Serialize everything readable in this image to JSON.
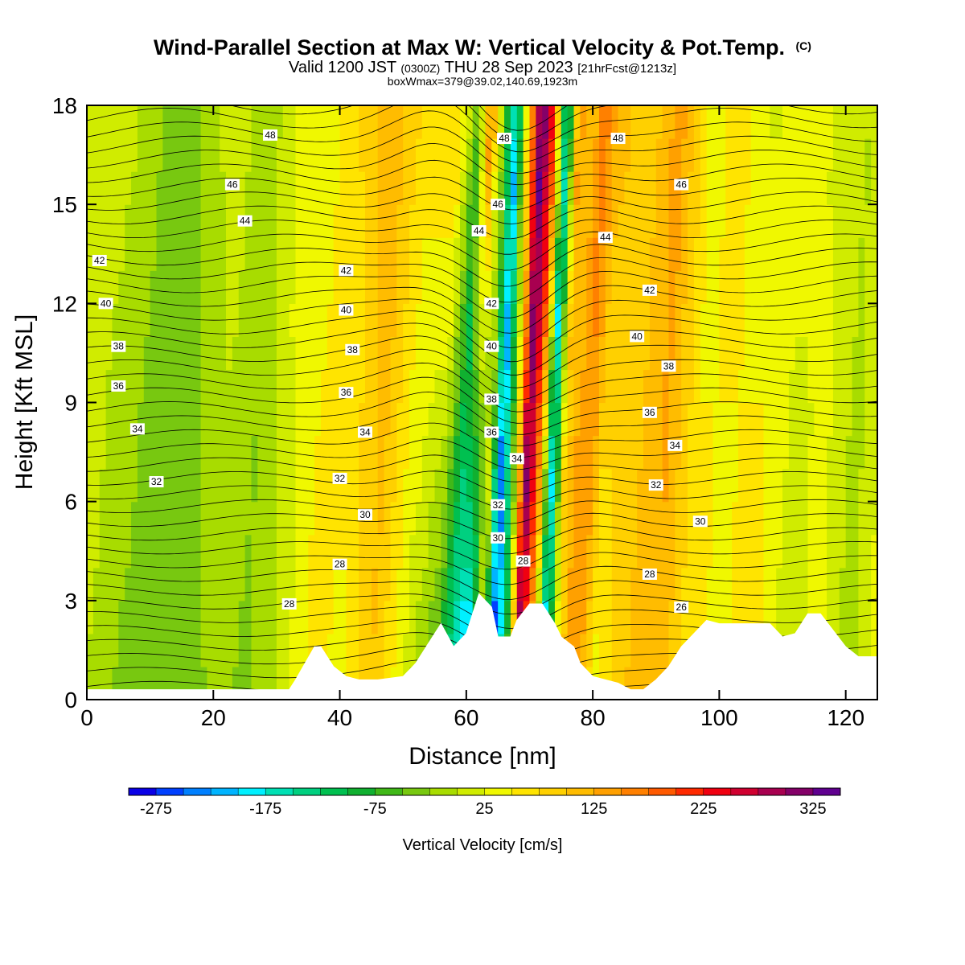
{
  "header": {
    "title": "Wind-Parallel Section at Max W: Vertical Velocity & Pot.Temp.",
    "title_mark": "(C)",
    "valid_main": "Valid 1200 JST",
    "valid_zulu": "(0300Z)",
    "valid_date": "THU 28 Sep 2023",
    "valid_fcst": "[21hrFcst@1213z]",
    "box_info": "boxWmax=379@39.02,140.69,1923m"
  },
  "chart_data": {
    "type": "heatmap",
    "xlabel": "Distance [nm]",
    "ylabel": "Height [Kft MSL]",
    "xlim": [
      0,
      125
    ],
    "ylim": [
      0,
      18
    ],
    "xticks": [
      "0",
      "20",
      "40",
      "60",
      "80",
      "100",
      "120"
    ],
    "yticks": [
      "0",
      "3",
      "6",
      "9",
      "12",
      "15",
      "18"
    ],
    "colorbar": {
      "label": "Vertical Velocity [cm/s]",
      "labels": [
        "-275",
        "-175",
        "-75",
        "25",
        "125",
        "225",
        "325"
      ],
      "min": -300,
      "max": 350,
      "step": 25,
      "colors": [
        "#0a00e6",
        "#0040ff",
        "#0080ff",
        "#00b4ff",
        "#00f0ff",
        "#00e0b4",
        "#00d080",
        "#00c050",
        "#10b030",
        "#40b818",
        "#78c810",
        "#a8dc00",
        "#d0ec00",
        "#f0f800",
        "#ffe400",
        "#ffd000",
        "#ffbc00",
        "#ffa000",
        "#ff8000",
        "#ff5a00",
        "#ff2a00",
        "#f00010",
        "#d00030",
        "#a80050",
        "#840068",
        "#600090"
      ]
    },
    "w_field": {
      "x": [
        0,
        5,
        10,
        15,
        20,
        25,
        30,
        35,
        40,
        45,
        50,
        55,
        58,
        60,
        62,
        64,
        66,
        68,
        70,
        72,
        74,
        76,
        78,
        80,
        85,
        90,
        95,
        100,
        105,
        110,
        115,
        120,
        125
      ],
      "w_low": [
        0,
        -30,
        -50,
        -40,
        -20,
        -30,
        0,
        60,
        40,
        100,
        20,
        -60,
        -180,
        -250,
        40,
        -280,
        -120,
        300,
        120,
        -200,
        40,
        150,
        120,
        40,
        100,
        120,
        60,
        40,
        80,
        0,
        40,
        -20,
        30
      ],
      "w_high": [
        10,
        0,
        -40,
        -20,
        20,
        -20,
        40,
        40,
        80,
        120,
        60,
        80,
        -60,
        180,
        -30,
        -200,
        100,
        340,
        220,
        -180,
        140,
        100,
        180,
        120,
        80,
        140,
        40,
        60,
        20,
        40,
        20,
        0,
        80
      ]
    },
    "terrain": {
      "x": [
        0,
        32,
        33,
        36,
        37,
        39,
        41,
        43,
        46,
        50,
        52,
        54,
        56,
        58,
        60,
        61,
        62,
        64,
        65,
        67,
        68,
        70,
        72,
        74,
        75,
        77,
        78,
        80,
        82,
        84,
        86,
        88,
        90,
        92,
        94,
        96,
        98,
        100,
        102,
        104,
        106,
        108,
        110,
        112,
        114,
        116,
        118,
        120,
        122,
        124,
        125
      ],
      "height": [
        0.3,
        0.3,
        0.6,
        1.6,
        1.6,
        1.0,
        0.7,
        0.6,
        0.6,
        0.7,
        1.1,
        1.7,
        2.3,
        1.6,
        2.0,
        2.6,
        3.2,
        2.8,
        1.9,
        1.9,
        2.4,
        2.9,
        2.9,
        2.3,
        1.9,
        1.6,
        1.1,
        0.7,
        0.6,
        0.5,
        0.3,
        0.3,
        0.6,
        1.0,
        1.6,
        2.0,
        2.4,
        2.3,
        2.3,
        2.3,
        2.3,
        2.3,
        1.9,
        2.0,
        2.6,
        2.6,
        2.1,
        1.6,
        1.3,
        1.3,
        1.3
      ]
    },
    "theta_labels": [
      {
        "value": "48",
        "x": 29,
        "y": 17.1
      },
      {
        "value": "46",
        "x": 23,
        "y": 15.6
      },
      {
        "value": "44",
        "x": 25,
        "y": 14.5
      },
      {
        "value": "42",
        "x": 2,
        "y": 13.3
      },
      {
        "value": "40",
        "x": 3,
        "y": 12.0
      },
      {
        "value": "38",
        "x": 5,
        "y": 10.7
      },
      {
        "value": "36",
        "x": 5,
        "y": 9.5
      },
      {
        "value": "34",
        "x": 8,
        "y": 8.2
      },
      {
        "value": "32",
        "x": 11,
        "y": 6.6
      },
      {
        "value": "42",
        "x": 41,
        "y": 13.0
      },
      {
        "value": "40",
        "x": 41,
        "y": 11.8
      },
      {
        "value": "38",
        "x": 42,
        "y": 10.6
      },
      {
        "value": "36",
        "x": 41,
        "y": 9.3
      },
      {
        "value": "34",
        "x": 44,
        "y": 8.1
      },
      {
        "value": "32",
        "x": 40,
        "y": 6.7
      },
      {
        "value": "30",
        "x": 44,
        "y": 5.6
      },
      {
        "value": "28",
        "x": 40,
        "y": 4.1
      },
      {
        "value": "28",
        "x": 32,
        "y": 2.9
      },
      {
        "value": "48",
        "x": 66,
        "y": 17.0
      },
      {
        "value": "46",
        "x": 65,
        "y": 15.0
      },
      {
        "value": "44",
        "x": 62,
        "y": 14.2
      },
      {
        "value": "42",
        "x": 64,
        "y": 12.0
      },
      {
        "value": "40",
        "x": 64,
        "y": 10.7
      },
      {
        "value": "38",
        "x": 64,
        "y": 9.1
      },
      {
        "value": "36",
        "x": 64,
        "y": 8.1
      },
      {
        "value": "34",
        "x": 68,
        "y": 7.3
      },
      {
        "value": "32",
        "x": 65,
        "y": 5.9
      },
      {
        "value": "30",
        "x": 65,
        "y": 4.9
      },
      {
        "value": "28",
        "x": 69,
        "y": 4.2
      },
      {
        "value": "48",
        "x": 84,
        "y": 17.0
      },
      {
        "value": "46",
        "x": 94,
        "y": 15.6
      },
      {
        "value": "44",
        "x": 82,
        "y": 14.0
      },
      {
        "value": "42",
        "x": 89,
        "y": 12.4
      },
      {
        "value": "40",
        "x": 87,
        "y": 11.0
      },
      {
        "value": "38",
        "x": 92,
        "y": 10.1
      },
      {
        "value": "36",
        "x": 89,
        "y": 8.7
      },
      {
        "value": "34",
        "x": 93,
        "y": 7.7
      },
      {
        "value": "32",
        "x": 90,
        "y": 6.5
      },
      {
        "value": "30",
        "x": 97,
        "y": 5.4
      },
      {
        "value": "28",
        "x": 89,
        "y": 3.8
      },
      {
        "value": "26",
        "x": 94,
        "y": 2.8
      }
    ]
  }
}
